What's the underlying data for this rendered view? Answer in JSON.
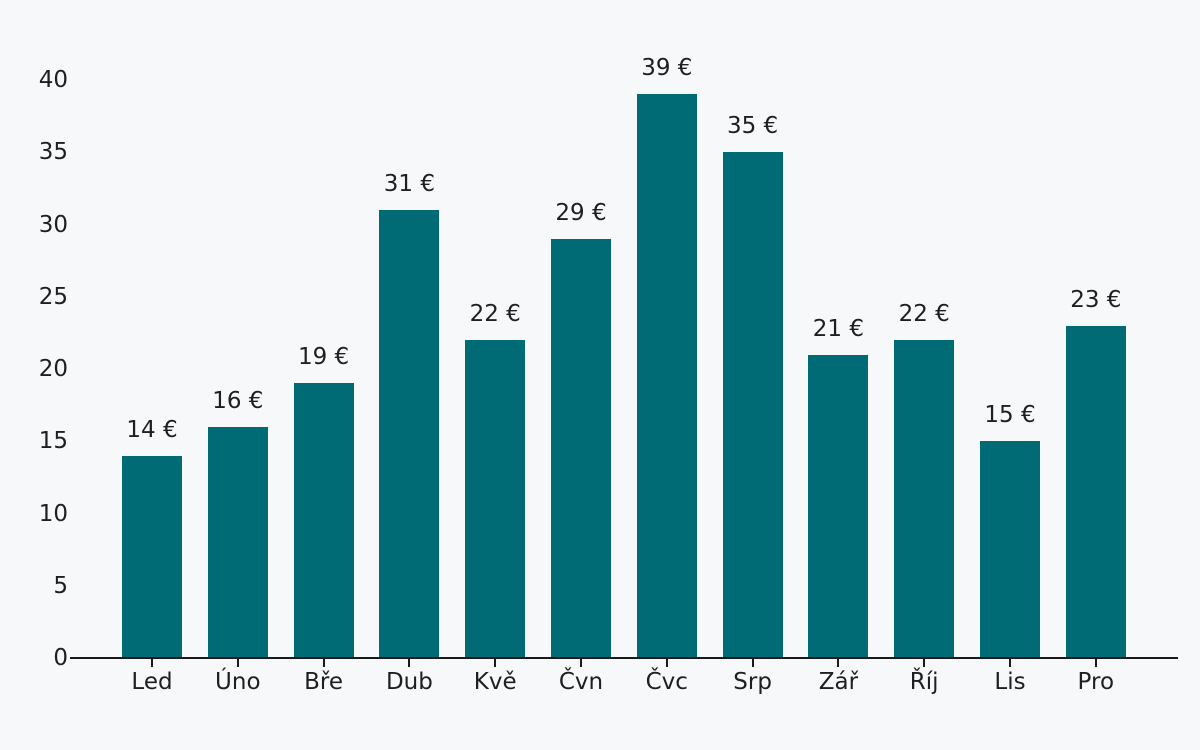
{
  "chart_data": {
    "type": "bar",
    "categories": [
      "Led",
      "Úno",
      "Bře",
      "Dub",
      "Kvě",
      "Čvn",
      "Čvc",
      "Srp",
      "Zář",
      "Říj",
      "Lis",
      "Pro"
    ],
    "values": [
      14,
      16,
      19,
      31,
      22,
      29,
      39,
      35,
      21,
      22,
      15,
      23
    ],
    "value_labels": [
      "14 €",
      "16 €",
      "19 €",
      "31 €",
      "22 €",
      "29 €",
      "39 €",
      "35 €",
      "21 €",
      "22 €",
      "15 €",
      "23 €"
    ],
    "title": "",
    "xlabel": "",
    "ylabel": "",
    "ylim": [
      0,
      40
    ],
    "yticks": [
      0,
      5,
      10,
      15,
      20,
      25,
      30,
      35,
      40
    ],
    "grid": false,
    "legend_position": "none",
    "colors": {
      "bar": "#006b75",
      "background": "#f7f8fa",
      "text": "#1f1f1f",
      "axis": "#1a1a1a"
    }
  }
}
